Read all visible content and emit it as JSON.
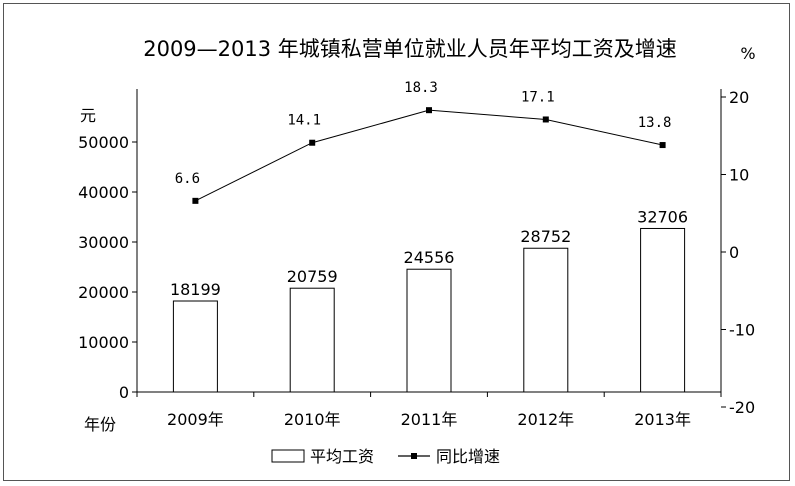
{
  "chart_data": {
    "type": "bar+line",
    "title": "2009—2013 年城镇私营单位就业人员年平均工资及增速",
    "categories": [
      "2009年",
      "2010年",
      "2011年",
      "2012年",
      "2013年"
    ],
    "x_axis_label": "年份",
    "left_axis": {
      "unit": "元",
      "ylim": [
        0,
        50000
      ],
      "ticks": [
        0,
        10000,
        20000,
        30000,
        40000,
        50000
      ]
    },
    "right_axis": {
      "unit": "%",
      "ylim": [
        -20,
        20
      ],
      "ticks": [
        -20,
        -10,
        0,
        10,
        20
      ]
    },
    "series": [
      {
        "name": "平均工资",
        "type": "bar",
        "axis": "left",
        "values": [
          18199,
          20759,
          24556,
          28752,
          32706
        ],
        "labels": [
          "18199",
          "20759",
          "24556",
          "28752",
          "32706"
        ]
      },
      {
        "name": "同比增速",
        "type": "line",
        "axis": "right",
        "values": [
          6.6,
          14.1,
          18.3,
          17.1,
          13.8
        ],
        "labels": [
          "6.6",
          "14.1",
          "18.3",
          "17.1",
          "13.8"
        ]
      }
    ],
    "legend": {
      "position": "bottom-center",
      "items": [
        "平均工资",
        "同比增速"
      ]
    },
    "grid": false
  }
}
